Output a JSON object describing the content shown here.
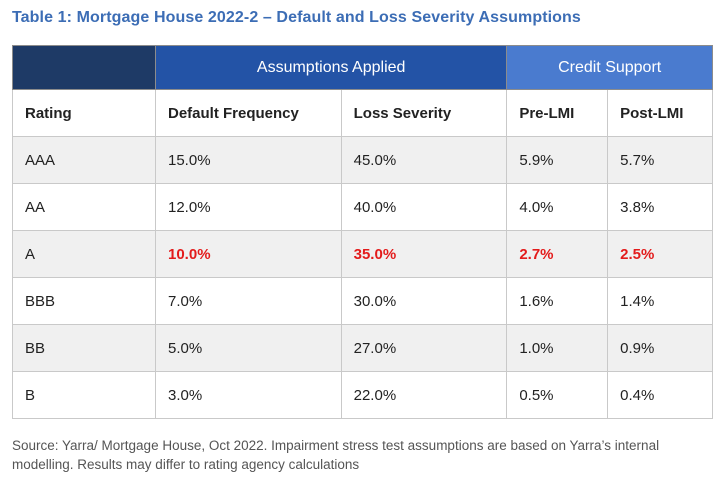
{
  "title": "Table 1: Mortgage House 2022-2 – Default and Loss Severity Assumptions",
  "group_headers": {
    "assumptions": "Assumptions Applied",
    "credit_support": "Credit Support"
  },
  "columns": [
    "Rating",
    "Default Frequency",
    "Loss Severity",
    "Pre-LMI",
    "Post-LMI"
  ],
  "rows": [
    {
      "rating": "AAA",
      "default_frequency": "15.0%",
      "loss_severity": "45.0%",
      "pre_lmi": "5.9%",
      "post_lmi": "5.7%"
    },
    {
      "rating": "AA",
      "default_frequency": "12.0%",
      "loss_severity": "40.0%",
      "pre_lmi": "4.0%",
      "post_lmi": "3.8%"
    },
    {
      "rating": "A",
      "default_frequency": "10.0%",
      "loss_severity": "35.0%",
      "pre_lmi": "2.7%",
      "post_lmi": "2.5%"
    },
    {
      "rating": "BBB",
      "default_frequency": "7.0%",
      "loss_severity": "30.0%",
      "pre_lmi": "1.6%",
      "post_lmi": "1.4%"
    },
    {
      "rating": "BB",
      "default_frequency": "5.0%",
      "loss_severity": "27.0%",
      "pre_lmi": "1.0%",
      "post_lmi": "0.9%"
    },
    {
      "rating": "B",
      "default_frequency": "3.0%",
      "loss_severity": "22.0%",
      "pre_lmi": "0.5%",
      "post_lmi": "0.4%"
    }
  ],
  "highlight_color": "#e31b1b",
  "source": "Source: Yarra/ Mortgage House, Oct 2022. Impairment stress test assumptions are based on Yarra’s internal modelling. Results may differ to rating agency calculations"
}
